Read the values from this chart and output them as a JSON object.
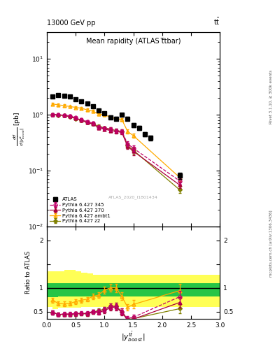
{
  "title_top_left": "13000 GeV pp",
  "title_top_right": "tt",
  "plot_title": "Mean rapidity (ATLAS ttbar)",
  "watermark": "ATLAS_2020_I1801434",
  "right_label1": "Rivet 3.1.10, ≥ 300k events",
  "right_label2": "mcplots.cern.ch [arXiv:1306.3436]",
  "xlim": [
    0,
    3
  ],
  "ylim_main": [
    0.01,
    30
  ],
  "ylim_ratio": [
    0.35,
    2.3
  ],
  "atlas_x": [
    0.1,
    0.2,
    0.3,
    0.4,
    0.5,
    0.6,
    0.7,
    0.8,
    0.9,
    1.0,
    1.1,
    1.2,
    1.3,
    1.4,
    1.5,
    1.6,
    1.7,
    1.8,
    2.3
  ],
  "atlas_y": [
    2.1,
    2.25,
    2.2,
    2.1,
    1.9,
    1.75,
    1.6,
    1.4,
    1.2,
    1.05,
    0.9,
    0.85,
    1.0,
    0.85,
    0.65,
    0.58,
    0.45,
    0.38,
    0.08
  ],
  "atlas_yerr": [
    0.1,
    0.1,
    0.1,
    0.1,
    0.1,
    0.08,
    0.08,
    0.07,
    0.07,
    0.06,
    0.06,
    0.06,
    0.06,
    0.06,
    0.05,
    0.05,
    0.04,
    0.04,
    0.01
  ],
  "p345_x": [
    0.1,
    0.2,
    0.3,
    0.4,
    0.5,
    0.6,
    0.7,
    0.8,
    0.9,
    1.0,
    1.1,
    1.2,
    1.3,
    1.4,
    1.5,
    2.3
  ],
  "p345_y": [
    1.0,
    1.0,
    0.98,
    0.95,
    0.88,
    0.82,
    0.75,
    0.7,
    0.6,
    0.57,
    0.55,
    0.52,
    0.5,
    0.3,
    0.25,
    0.065
  ],
  "p345_yerr": [
    0.05,
    0.05,
    0.05,
    0.05,
    0.04,
    0.04,
    0.04,
    0.04,
    0.04,
    0.04,
    0.04,
    0.04,
    0.04,
    0.03,
    0.03,
    0.008
  ],
  "p370_x": [
    0.1,
    0.2,
    0.3,
    0.4,
    0.5,
    0.6,
    0.7,
    0.8,
    0.9,
    1.0,
    1.1,
    1.2,
    1.3,
    1.4,
    1.5,
    2.3
  ],
  "p370_y": [
    1.0,
    1.0,
    0.97,
    0.93,
    0.86,
    0.8,
    0.72,
    0.68,
    0.58,
    0.55,
    0.52,
    0.5,
    0.48,
    0.27,
    0.22,
    0.055
  ],
  "p370_yerr": [
    0.05,
    0.05,
    0.05,
    0.05,
    0.04,
    0.04,
    0.04,
    0.04,
    0.04,
    0.04,
    0.04,
    0.04,
    0.04,
    0.03,
    0.03,
    0.007
  ],
  "pambt1_x": [
    0.1,
    0.2,
    0.3,
    0.4,
    0.5,
    0.6,
    0.7,
    0.8,
    0.9,
    1.0,
    1.1,
    1.2,
    1.3,
    1.4,
    1.5,
    2.3
  ],
  "pambt1_y": [
    1.55,
    1.5,
    1.45,
    1.4,
    1.35,
    1.3,
    1.22,
    1.15,
    1.02,
    1.0,
    0.9,
    0.85,
    0.82,
    0.5,
    0.42,
    0.075
  ],
  "pambt1_yerr": [
    0.07,
    0.07,
    0.07,
    0.07,
    0.06,
    0.06,
    0.06,
    0.06,
    0.05,
    0.05,
    0.05,
    0.05,
    0.05,
    0.04,
    0.04,
    0.01
  ],
  "pz2_x": [
    0.1,
    0.2,
    0.3,
    0.4,
    0.5,
    0.6,
    0.7,
    0.8,
    0.9,
    1.0,
    1.1,
    1.2,
    1.3,
    1.4,
    1.5,
    2.3
  ],
  "pz2_y": [
    1.0,
    0.98,
    0.96,
    0.92,
    0.85,
    0.8,
    0.72,
    0.68,
    0.62,
    0.58,
    0.55,
    0.52,
    0.5,
    0.28,
    0.23,
    0.045
  ],
  "pz2_yerr": [
    0.05,
    0.05,
    0.05,
    0.05,
    0.04,
    0.04,
    0.04,
    0.04,
    0.04,
    0.04,
    0.04,
    0.04,
    0.04,
    0.03,
    0.03,
    0.006
  ],
  "ratio_p345": [
    0.48,
    0.44,
    0.45,
    0.45,
    0.46,
    0.47,
    0.47,
    0.5,
    0.5,
    0.54,
    0.61,
    0.61,
    0.5,
    0.35,
    0.38,
    0.81
  ],
  "ratio_p345_e": [
    0.04,
    0.04,
    0.04,
    0.04,
    0.04,
    0.04,
    0.04,
    0.04,
    0.05,
    0.05,
    0.06,
    0.07,
    0.06,
    0.05,
    0.06,
    0.12
  ],
  "ratio_p370": [
    0.48,
    0.44,
    0.44,
    0.44,
    0.45,
    0.46,
    0.45,
    0.49,
    0.48,
    0.52,
    0.58,
    0.59,
    0.48,
    0.32,
    0.34,
    0.69
  ],
  "ratio_p370_e": [
    0.04,
    0.04,
    0.04,
    0.04,
    0.04,
    0.04,
    0.04,
    0.04,
    0.05,
    0.05,
    0.06,
    0.07,
    0.06,
    0.05,
    0.06,
    0.11
  ],
  "ratio_pambt1": [
    0.74,
    0.67,
    0.66,
    0.67,
    0.71,
    0.74,
    0.76,
    0.82,
    0.85,
    0.95,
    1.0,
    1.0,
    0.82,
    0.59,
    0.65,
    0.94
  ],
  "ratio_pambt1_e": [
    0.05,
    0.05,
    0.05,
    0.05,
    0.05,
    0.05,
    0.05,
    0.06,
    0.06,
    0.07,
    0.08,
    0.09,
    0.08,
    0.07,
    0.09,
    0.15
  ],
  "ratio_pz2": [
    0.48,
    0.44,
    0.44,
    0.44,
    0.45,
    0.46,
    0.45,
    0.49,
    0.52,
    0.55,
    0.61,
    0.61,
    0.5,
    0.33,
    0.35,
    0.56
  ],
  "ratio_pz2_e": [
    0.04,
    0.04,
    0.04,
    0.04,
    0.04,
    0.04,
    0.04,
    0.04,
    0.05,
    0.05,
    0.06,
    0.07,
    0.06,
    0.05,
    0.06,
    0.1
  ],
  "band_x": [
    0.0,
    0.1,
    0.2,
    0.3,
    0.4,
    0.5,
    0.6,
    0.7,
    0.8,
    0.9,
    1.0,
    1.1,
    1.2,
    1.5,
    3.0
  ],
  "band_green_lo": [
    0.8,
    0.8,
    0.82,
    0.82,
    0.82,
    0.82,
    0.82,
    0.82,
    0.82,
    0.82,
    0.82,
    0.82,
    0.82,
    0.82,
    0.82
  ],
  "band_green_hi": [
    1.1,
    1.1,
    1.1,
    1.1,
    1.1,
    1.1,
    1.1,
    1.1,
    1.1,
    1.1,
    1.1,
    1.1,
    1.1,
    1.1,
    1.1
  ],
  "band_yellow_lo": [
    0.6,
    0.55,
    0.58,
    0.58,
    0.58,
    0.58,
    0.6,
    0.6,
    0.6,
    0.6,
    0.6,
    0.6,
    0.6,
    0.6,
    0.6
  ],
  "band_yellow_hi": [
    1.35,
    1.35,
    1.35,
    1.38,
    1.38,
    1.35,
    1.32,
    1.3,
    1.28,
    1.28,
    1.28,
    1.28,
    1.28,
    1.28,
    1.28
  ],
  "color_atlas": "#000000",
  "color_p345": "#c0006a",
  "color_p370": "#aa003a",
  "color_pambt1": "#ffaa00",
  "color_pz2": "#808000",
  "color_green": "#00bb44",
  "color_yellow": "#ffff44",
  "legend_entries": [
    "ATLAS",
    "Pythia 6.427 345",
    "Pythia 6.427 370",
    "Pythia 6.427 ambt1",
    "Pythia 6.427 z2"
  ]
}
